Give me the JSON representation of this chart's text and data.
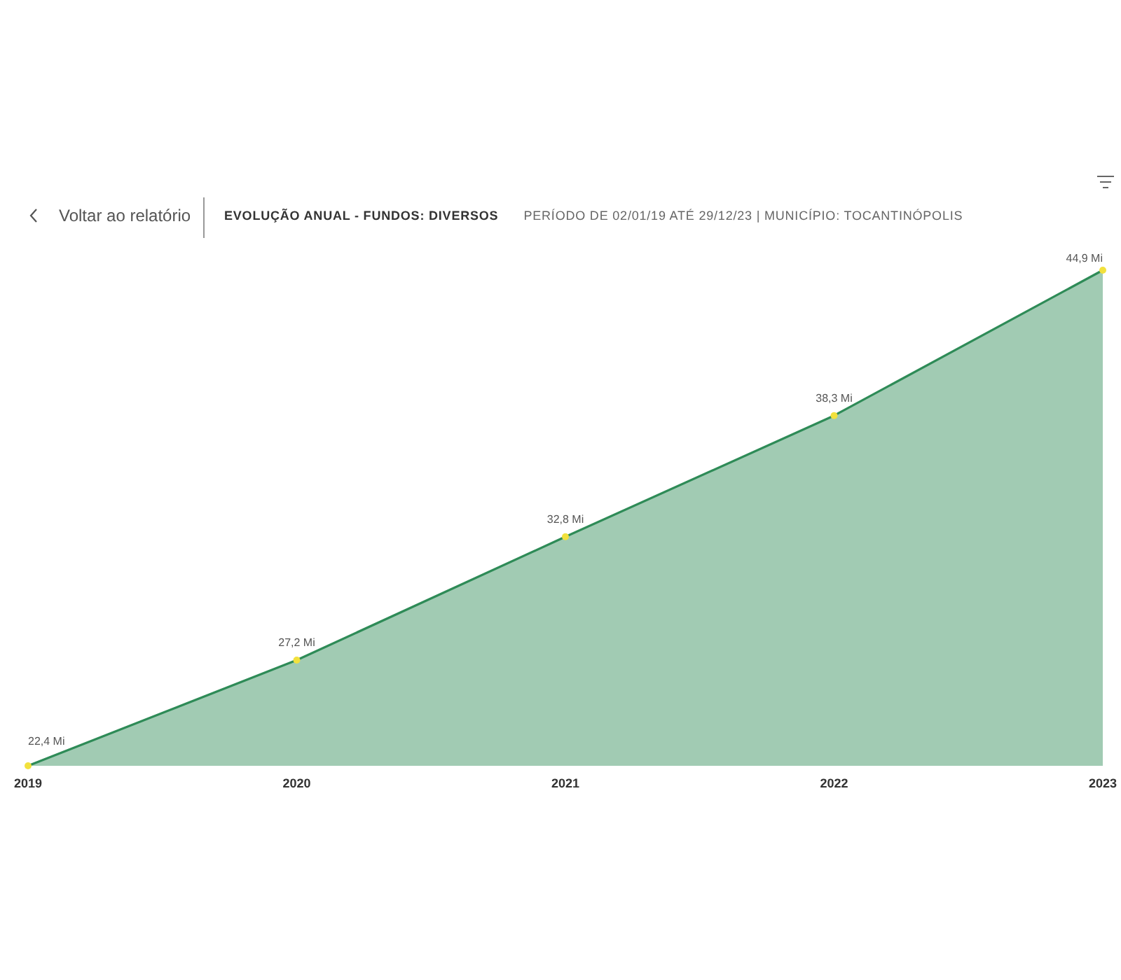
{
  "chart_data": {
    "type": "area",
    "title": "EVOLUÇÃO ANUAL - FUNDOS: DIVERSOS",
    "subtitle": "PERÍODO DE 02/01/19 ATÉ 29/12/23 | MUNICÍPIO: TOCANTINÓPOLIS",
    "annotations": [
      "Voltar ao relatório"
    ],
    "categories": [
      "2019",
      "2020",
      "2021",
      "2022",
      "2023"
    ],
    "values": [
      22.4,
      27.2,
      32.8,
      38.3,
      44.9
    ],
    "value_labels": [
      "22,4 Mi",
      "27,2 Mi",
      "32,8 Mi",
      "38,3 Mi",
      "44,9 Mi"
    ],
    "color": "#2e8b57",
    "marker": "circle",
    "grid": false,
    "legend": false
  }
}
